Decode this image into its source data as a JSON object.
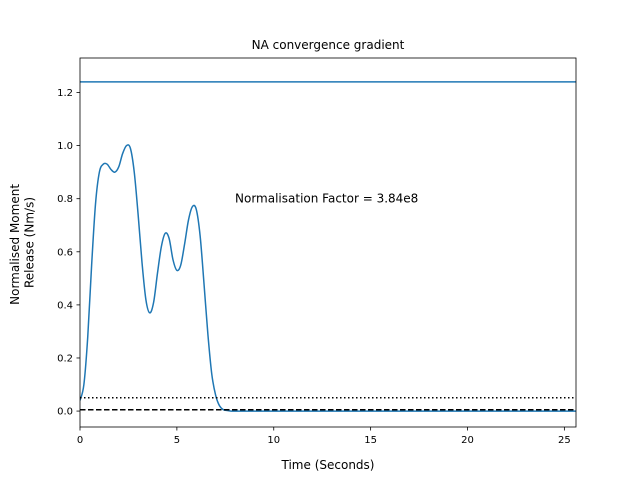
{
  "chart_data": {
    "type": "line",
    "title": "NA convergence gradient",
    "xlabel": "Time (Seconds)",
    "ylabel_lines": [
      "Normalised Moment",
      "Release (Nm/s)"
    ],
    "xlim": [
      0,
      25.6
    ],
    "ylim": [
      -0.06,
      1.33
    ],
    "xticks": [
      0,
      5,
      10,
      15,
      20,
      25
    ],
    "yticks": [
      0.0,
      0.2,
      0.4,
      0.6,
      0.8,
      1.0,
      1.2
    ],
    "xtick_labels": [
      "0",
      "5",
      "10",
      "15",
      "20",
      "25"
    ],
    "ytick_labels": [
      "0.0",
      "0.2",
      "0.4",
      "0.6",
      "0.8",
      "1.0",
      "1.2"
    ],
    "annotation": {
      "text": "Normalisation Factor = 3.84e8",
      "x": 8.0,
      "y": 0.8
    },
    "colors": {
      "series": "#1f77b4",
      "reference": "#000000"
    },
    "series": [
      {
        "style": "solid",
        "color": "#1f77b4",
        "x": [
          0,
          0.2,
          0.4,
          0.6,
          0.8,
          1.0,
          1.2,
          1.4,
          1.6,
          1.8,
          2.0,
          2.2,
          2.4,
          2.6,
          2.8,
          3.0,
          3.2,
          3.4,
          3.6,
          3.8,
          4.0,
          4.2,
          4.4,
          4.6,
          4.8,
          5.0,
          5.2,
          5.4,
          5.6,
          5.8,
          6.0,
          6.2,
          6.4,
          6.6,
          6.8,
          7.0,
          7.2,
          7.4,
          7.6,
          7.8,
          8.0,
          8.5,
          9.0,
          10,
          15,
          20,
          25.6
        ],
        "y": [
          0.04,
          0.1,
          0.28,
          0.55,
          0.78,
          0.9,
          0.93,
          0.93,
          0.91,
          0.9,
          0.92,
          0.97,
          1.0,
          0.99,
          0.9,
          0.74,
          0.56,
          0.42,
          0.37,
          0.41,
          0.52,
          0.62,
          0.67,
          0.65,
          0.57,
          0.53,
          0.55,
          0.63,
          0.72,
          0.77,
          0.76,
          0.66,
          0.48,
          0.29,
          0.14,
          0.06,
          0.02,
          0.005,
          0.002,
          0.0,
          0.0,
          0.0,
          0.0,
          0.0,
          0.0,
          0.0,
          0.0
        ]
      },
      {
        "style": "hline-solid",
        "color": "#1f77b4",
        "y": 1.24
      },
      {
        "style": "hline-dotted",
        "color": "#000000",
        "y": 0.05
      },
      {
        "style": "hline-dashed",
        "color": "#000000",
        "y": 0.005
      }
    ]
  }
}
